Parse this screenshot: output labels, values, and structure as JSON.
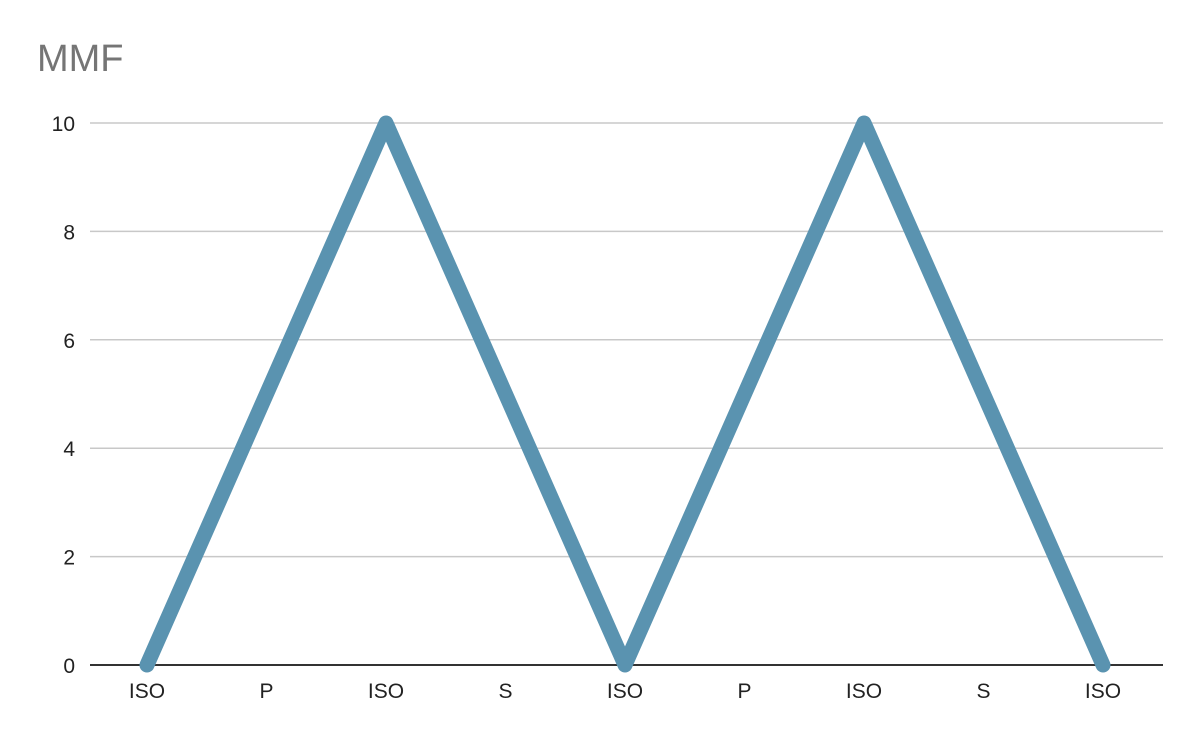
{
  "chart_data": {
    "type": "line",
    "title": "MMF",
    "xlabel": "",
    "ylabel": "",
    "categories": [
      "ISO",
      "P",
      "ISO",
      "S",
      "ISO",
      "P",
      "ISO",
      "S",
      "ISO"
    ],
    "series": [
      {
        "values": [
          0,
          5,
          10,
          5,
          0,
          5,
          10,
          5,
          0
        ],
        "color": "#5a93b0"
      }
    ],
    "ylim": [
      0,
      10
    ],
    "yticks": [
      0,
      2,
      4,
      6,
      8,
      10
    ],
    "grid": true,
    "legend": "none",
    "colors": {
      "gridline": "#c8c8c8",
      "axis": "#333333",
      "title": "#757575",
      "tick_text": "#222222"
    }
  }
}
